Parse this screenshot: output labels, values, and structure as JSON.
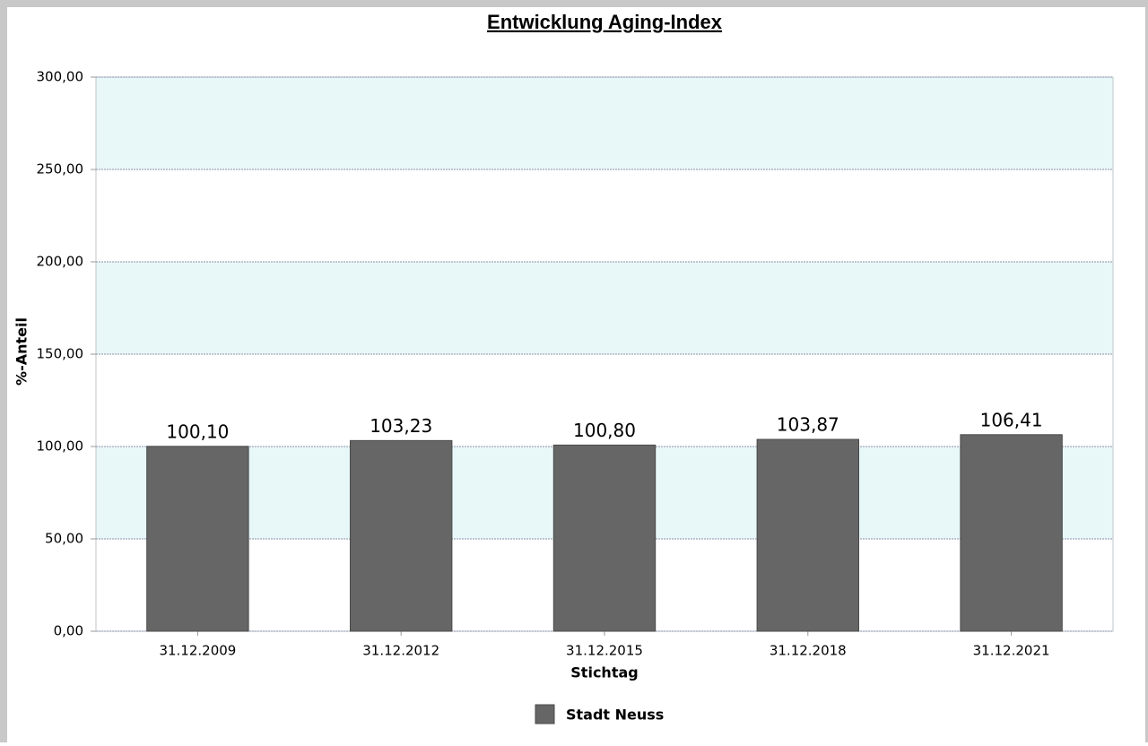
{
  "chart_data": {
    "type": "bar",
    "title": "Entwicklung Aging-Index",
    "categories": [
      "31.12.2009",
      "31.12.2012",
      "31.12.2015",
      "31.12.2018",
      "31.12.2021"
    ],
    "series": [
      {
        "name": "Stadt Neuss",
        "color": "#666666",
        "values": [
          100.1,
          103.23,
          100.8,
          103.87,
          106.41
        ],
        "value_labels": [
          "100,10",
          "103,23",
          "100,80",
          "103,87",
          "106,41"
        ]
      }
    ],
    "ylim": [
      0,
      300
    ],
    "yticks": [
      {
        "value": 0,
        "label": "0,00"
      },
      {
        "value": 50,
        "label": "50,00"
      },
      {
        "value": 100,
        "label": "100,00"
      },
      {
        "value": 150,
        "label": "150,00"
      },
      {
        "value": 200,
        "label": "200,00"
      },
      {
        "value": 250,
        "label": "250,00"
      },
      {
        "value": 300,
        "label": "300,00"
      }
    ],
    "xlabel": "Stichtag",
    "ylabel": "%-Anteil",
    "grid": true,
    "legend": "bottom"
  }
}
